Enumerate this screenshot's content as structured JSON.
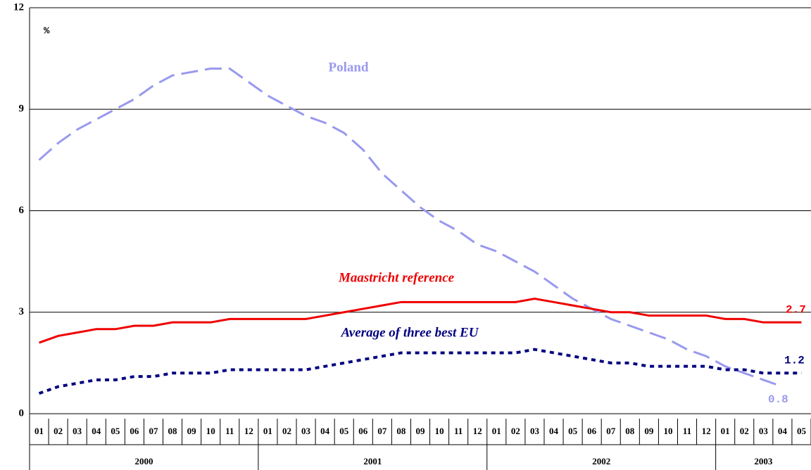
{
  "chart_data": {
    "type": "line",
    "y_label": "%",
    "categories": [
      "01",
      "02",
      "03",
      "04",
      "05",
      "06",
      "07",
      "08",
      "09",
      "10",
      "11",
      "12",
      "01",
      "02",
      "03",
      "04",
      "05",
      "06",
      "07",
      "08",
      "09",
      "10",
      "11",
      "12",
      "01",
      "02",
      "03",
      "04",
      "05",
      "06",
      "07",
      "08",
      "09",
      "10",
      "11",
      "12",
      "01",
      "02",
      "03",
      "04",
      "05"
    ],
    "x_groups": [
      "2000",
      "2001",
      "2002",
      "2003"
    ],
    "ylim": [
      0,
      12
    ],
    "yticks": [
      0,
      3,
      6,
      9,
      12
    ],
    "grid": true,
    "series": [
      {
        "name": "Poland",
        "color": "#9999ee",
        "style": "dashed",
        "values": [
          7.5,
          8.0,
          8.4,
          8.7,
          9.0,
          9.3,
          9.7,
          10.0,
          10.1,
          10.2,
          10.2,
          9.8,
          9.4,
          9.1,
          8.8,
          8.6,
          8.3,
          7.8,
          7.1,
          6.6,
          6.1,
          5.7,
          5.4,
          5.0,
          4.8,
          4.5,
          4.2,
          3.8,
          3.4,
          3.1,
          2.8,
          2.6,
          2.4,
          2.2,
          1.9,
          1.7,
          1.4,
          1.2,
          1.0,
          0.8,
          null
        ]
      },
      {
        "name": "Maastricht reference",
        "color": "#ee0000",
        "style": "solid",
        "values": [
          2.1,
          2.3,
          2.4,
          2.5,
          2.5,
          2.6,
          2.6,
          2.7,
          2.7,
          2.7,
          2.8,
          2.8,
          2.8,
          2.8,
          2.8,
          2.9,
          3.0,
          3.1,
          3.2,
          3.3,
          3.3,
          3.3,
          3.3,
          3.3,
          3.3,
          3.3,
          3.4,
          3.3,
          3.2,
          3.1,
          3.0,
          3.0,
          2.9,
          2.9,
          2.9,
          2.9,
          2.8,
          2.8,
          2.7,
          2.7,
          2.7
        ]
      },
      {
        "name": "Average of three best EU",
        "color": "#000080",
        "style": "dotted",
        "values": [
          0.6,
          0.8,
          0.9,
          1.0,
          1.0,
          1.1,
          1.1,
          1.2,
          1.2,
          1.2,
          1.3,
          1.3,
          1.3,
          1.3,
          1.3,
          1.4,
          1.5,
          1.6,
          1.7,
          1.8,
          1.8,
          1.8,
          1.8,
          1.8,
          1.8,
          1.8,
          1.9,
          1.8,
          1.7,
          1.6,
          1.5,
          1.5,
          1.4,
          1.4,
          1.4,
          1.4,
          1.3,
          1.3,
          1.2,
          1.2,
          1.2
        ]
      }
    ]
  }
}
